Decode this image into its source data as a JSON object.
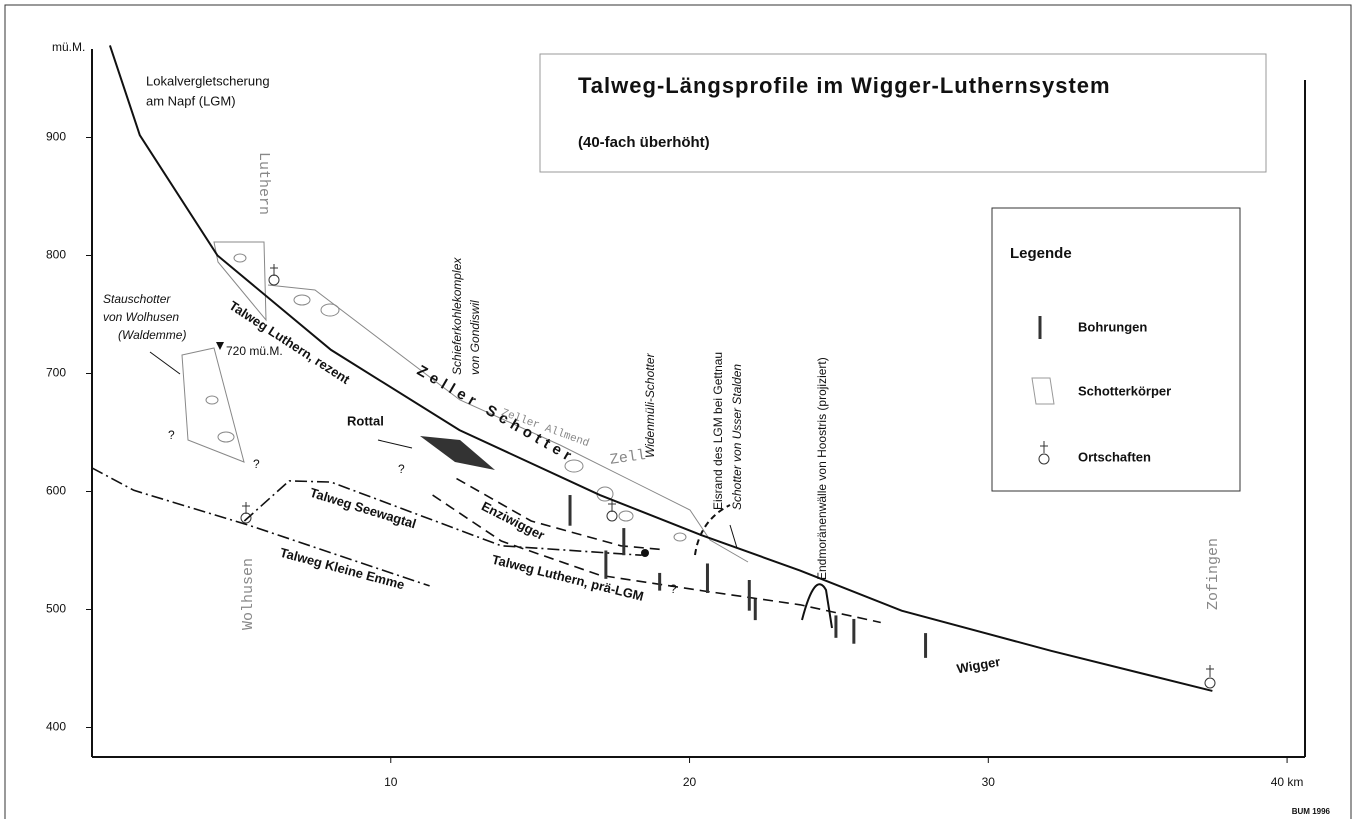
{
  "chart_data": {
    "type": "line",
    "title": "Talweg-Längsprofile im Wigger-Luthernsystem",
    "subtitle": "(40-fach überhöht)",
    "y_label": "mü.M.",
    "xlim": [
      0,
      40.6
    ],
    "ylim": [
      375,
      975
    ],
    "xticks": [
      10,
      20,
      30,
      {
        "value": 40,
        "label": "40 km"
      }
    ],
    "yticks": [
      400,
      500,
      600,
      700,
      800,
      900
    ],
    "series": [
      {
        "name": "Talweg Luthern, rezent",
        "style": "solid",
        "color": "#111",
        "x": [
          0.6,
          1.6,
          4.2,
          8.0,
          12.3,
          17.0,
          20.4,
          23.7,
          27.1,
          32.1,
          37.5
        ],
        "values": [
          978,
          902,
          800,
          720,
          652,
          597,
          563,
          533,
          499,
          465,
          431
        ]
      },
      {
        "name": "Talweg Luthern, prä-LGM",
        "style": "dashed",
        "color": "#111",
        "x": [
          11.4,
          13.7,
          17.0,
          20.4,
          23.7,
          26.4
        ],
        "values": [
          597,
          558,
          529,
          516,
          504,
          489
        ]
      },
      {
        "name": "Enziwigger",
        "style": "dashed",
        "color": "#111",
        "x": [
          12.2,
          14.7,
          17.7,
          19.0
        ],
        "values": [
          611,
          575,
          554,
          551
        ]
      },
      {
        "name": "Talweg Seewagtal",
        "style": "dashdot",
        "color": "#111",
        "x": [
          5.1,
          6.6,
          8.0,
          13.7,
          18.4
        ],
        "values": [
          575,
          609,
          608,
          554,
          546
        ]
      },
      {
        "name": "Talweg Kleine Emme",
        "style": "dashdot",
        "color": "#111",
        "x": [
          0,
          1.4,
          5.3,
          11.3
        ],
        "values": [
          620,
          601,
          571,
          520
        ]
      }
    ],
    "boreholes": {
      "x": [
        16.0,
        17.2,
        17.8,
        19.0,
        20.6,
        22.0,
        22.2,
        24.9,
        25.5,
        27.9
      ],
      "top": [
        597,
        550,
        569,
        531,
        539,
        525,
        509,
        495,
        492,
        480
      ],
      "bottom": [
        571,
        526,
        546,
        516,
        514,
        499,
        491,
        476,
        471,
        459
      ]
    },
    "annotations": [
      "Lokalvergletscherung",
      "am Napf (LGM)",
      "Luthern",
      "Stauschotter",
      "von Wolhusen",
      "(Waldemme)",
      "720 mü.M.",
      "Zeller Schotter",
      "Zeller Allmend",
      "Zell",
      "Schieferkohlekomplex",
      "von Gondiswil",
      "Rottal",
      "Widenmüli-Schotter",
      "Eisrand des LGM bei Gettnau",
      "Schotter von Usser Stalden",
      "Endmoränenwälle von Hoostris (projiziert)",
      "Wigger",
      "Wolhusen",
      "Zofingen",
      "?",
      "?",
      "?",
      "?"
    ],
    "legend": {
      "title": "Legende",
      "items": [
        "Bohrungen",
        "Schotterkörper",
        "Ortschaften"
      ]
    },
    "credit": "BUM 1996"
  }
}
